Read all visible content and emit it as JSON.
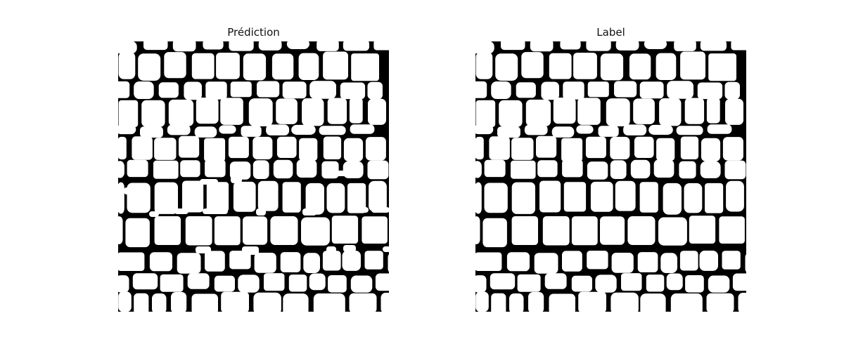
{
  "figure": {
    "panels": [
      {
        "title": "Prédiction",
        "kind": "prediction"
      },
      {
        "title": "Label",
        "kind": "label"
      }
    ],
    "colors": {
      "foreground": "#ffffff",
      "background": "#000000"
    }
  }
}
